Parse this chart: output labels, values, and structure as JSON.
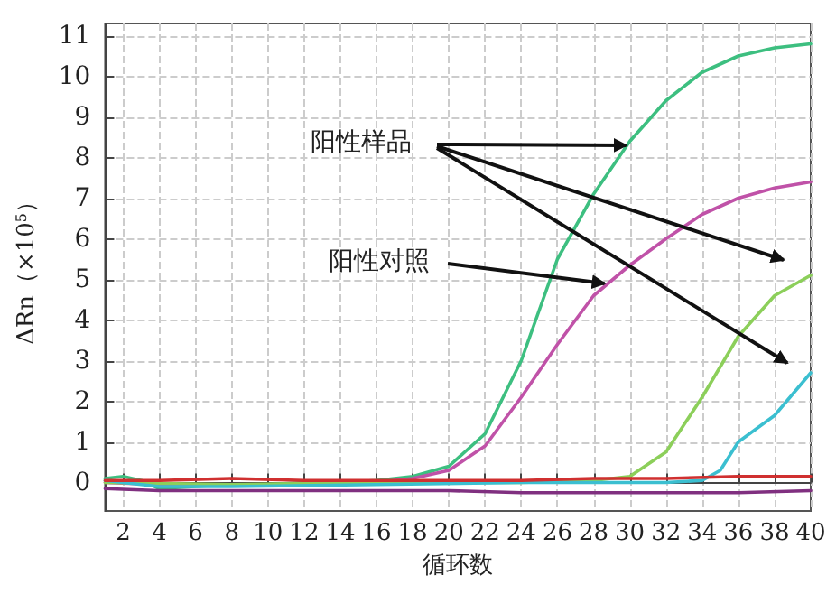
{
  "chart_data": {
    "type": "line",
    "xlabel": "循环数",
    "ylabel": "ΔRn（×10$^{5}$）",
    "xlim": [
      1,
      40
    ],
    "xticks": [
      2,
      4,
      6,
      8,
      10,
      12,
      14,
      16,
      18,
      20,
      22,
      24,
      26,
      28,
      30,
      32,
      34,
      36,
      38,
      40
    ],
    "ylim": [
      -0.7,
      11.3
    ],
    "yticks": [
      0,
      1,
      2,
      3,
      4,
      5,
      6,
      7,
      8,
      9,
      10,
      11
    ],
    "grid": true,
    "marker": "none",
    "line_style": "solid",
    "annotations": [
      {
        "text": "阳性样品",
        "x": 30,
        "y": 8.3
      },
      {
        "text": "阳性对照",
        "x": 28.8,
        "y": 4.9
      }
    ],
    "series": [
      {
        "color": "#3dbf80",
        "x": [
          1,
          2,
          3,
          4,
          6,
          8,
          10,
          12,
          14,
          16,
          18,
          20,
          22,
          24,
          26,
          28,
          30,
          32,
          34,
          36,
          38,
          40
        ],
        "values": [
          0.1,
          0.15,
          0.05,
          -0.15,
          -0.1,
          -0.05,
          -0.05,
          0,
          0,
          0.05,
          0.15,
          0.4,
          1.2,
          3.0,
          5.5,
          7.1,
          8.4,
          9.4,
          10.1,
          10.5,
          10.7,
          10.8
        ]
      },
      {
        "color": "#c052a8",
        "x": [
          1,
          4,
          8,
          12,
          16,
          18,
          20,
          22,
          24,
          26,
          28,
          30,
          32,
          34,
          36,
          38,
          40
        ],
        "values": [
          0,
          -0.05,
          -0.05,
          -0.05,
          0,
          0.1,
          0.3,
          0.9,
          2.1,
          3.4,
          4.6,
          5.35,
          6.0,
          6.6,
          7.0,
          7.25,
          7.4
        ]
      },
      {
        "color": "#8ccf5a",
        "x": [
          1,
          8,
          16,
          24,
          28,
          30,
          32,
          34,
          36,
          38,
          40
        ],
        "values": [
          0,
          -0.05,
          0,
          0,
          0.05,
          0.15,
          0.75,
          2.1,
          3.6,
          4.6,
          5.1
        ]
      },
      {
        "color": "#3bbfd0",
        "x": [
          1,
          4,
          8,
          16,
          24,
          32,
          34,
          35,
          36,
          38,
          40
        ],
        "values": [
          0.05,
          -0.1,
          -0.1,
          -0.05,
          0,
          0,
          0.05,
          0.3,
          1.0,
          1.65,
          2.7
        ]
      },
      {
        "color": "#d03030",
        "x": [
          1,
          4,
          8,
          12,
          16,
          20,
          24,
          28,
          32,
          36,
          40
        ],
        "values": [
          0.05,
          0.05,
          0.1,
          0.05,
          0.05,
          0.05,
          0.05,
          0.1,
          0.1,
          0.15,
          0.15
        ]
      },
      {
        "color": "#803080",
        "x": [
          1,
          4,
          8,
          12,
          16,
          20,
          24,
          28,
          32,
          36,
          40
        ],
        "values": [
          -0.15,
          -0.2,
          -0.2,
          -0.2,
          -0.2,
          -0.2,
          -0.25,
          -0.25,
          -0.25,
          -0.25,
          -0.2
        ]
      }
    ]
  }
}
